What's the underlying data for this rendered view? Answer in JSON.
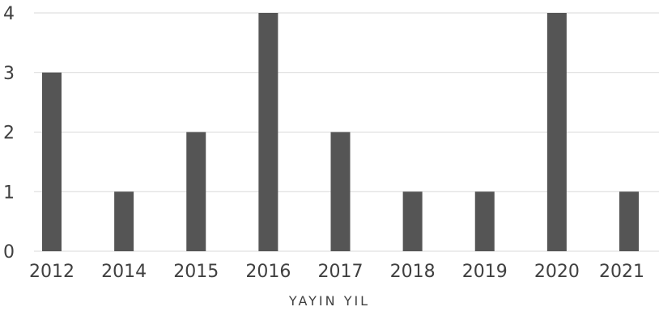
{
  "chart_data": {
    "type": "bar",
    "categories": [
      "2012",
      "2014",
      "2015",
      "2016",
      "2017",
      "2018",
      "2019",
      "2020",
      "2021"
    ],
    "values": [
      3,
      1,
      2,
      4,
      2,
      1,
      1,
      4,
      1
    ],
    "xlabel": "YAYIN YIL",
    "ylabel": "",
    "ylim": [
      0,
      4
    ],
    "yticks": [
      "0",
      "1",
      "2",
      "3",
      "4"
    ],
    "grid": true,
    "colors": {
      "bar": "#555555",
      "grid": "#d9d9d9",
      "text": "#404040"
    }
  }
}
